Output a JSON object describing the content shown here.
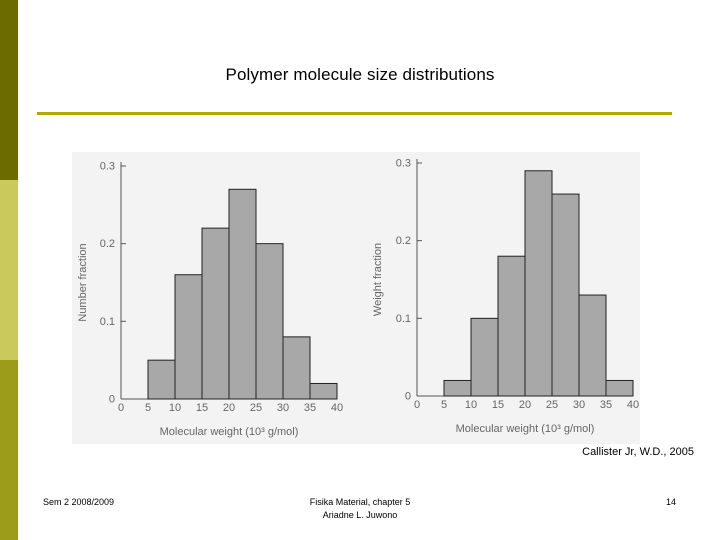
{
  "slide": {
    "title": "Polymer molecule size distributions",
    "citation": "Callister Jr, W.D., 2005",
    "footer_left": "Sem 2 2008/2009",
    "footer_center_line1": "Fisika Material, chapter 5",
    "footer_center_line2": "Ariadne L. Juwono",
    "page_number": "14"
  },
  "colors": {
    "side_bar_dark": "#6b6b00",
    "side_bar_light": "#c9c95c",
    "side_bar_mid": "#9c9c1a",
    "title_rule": "#b3a800",
    "bar_fill": "#a8a8a8",
    "bar_stroke": "#222222",
    "axis": "#555555",
    "axis_text": "#666666"
  },
  "chart_data": [
    {
      "type": "bar",
      "ylabel": "Number fraction",
      "xlabel": "Molecular weight (10³ g/mol)",
      "bin_edges": [
        5,
        10,
        15,
        20,
        25,
        30,
        35
      ],
      "bin_width": 5,
      "values": [
        0.05,
        0.16,
        0.22,
        0.27,
        0.2,
        0.08,
        0.02
      ],
      "x_ticks": [
        "0",
        "5",
        "10",
        "15",
        "20",
        "25",
        "30",
        "35",
        "40"
      ],
      "y_ticks": [
        "0",
        "0.1",
        "0.2",
        "0.3"
      ],
      "xlim": [
        0,
        40
      ],
      "ylim": [
        0,
        0.3
      ]
    },
    {
      "type": "bar",
      "ylabel": "Weight fraction",
      "xlabel": "Molecular weight (10³ g/mol)",
      "bin_edges": [
        5,
        10,
        15,
        20,
        25,
        30,
        35
      ],
      "bin_width": 5,
      "values": [
        0.02,
        0.1,
        0.18,
        0.29,
        0.26,
        0.13,
        0.02
      ],
      "x_ticks": [
        "0",
        "5",
        "10",
        "15",
        "20",
        "25",
        "30",
        "35",
        "40"
      ],
      "y_ticks": [
        "0",
        "0.1",
        "0.2",
        "0.3"
      ],
      "xlim": [
        0,
        40
      ],
      "ylim": [
        0,
        0.3
      ]
    }
  ]
}
